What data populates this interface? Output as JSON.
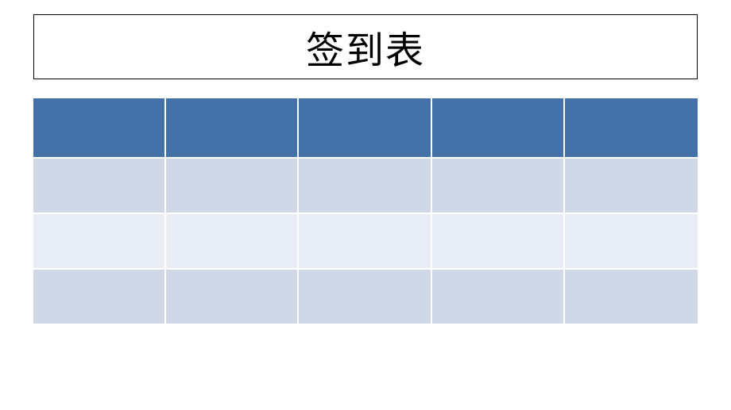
{
  "title": "签到表",
  "table": {
    "type": "table",
    "columns": 5,
    "header_row_count": 1,
    "body_row_count": 3,
    "header_bg_color": "#4472a8",
    "row_odd_bg_color": "#d0d8e8",
    "row_even_bg_color": "#e8ecf4",
    "cell_border_color": "#ffffff",
    "cell_border_width": 2,
    "header_labels": [
      "",
      "",
      "",
      "",
      ""
    ],
    "rows": [
      [
        "",
        "",
        "",
        "",
        ""
      ],
      [
        "",
        "",
        "",
        "",
        ""
      ],
      [
        "",
        "",
        "",
        "",
        ""
      ]
    ]
  },
  "title_box": {
    "border_color": "#000000",
    "background_color": "#ffffff",
    "font_size": 48,
    "text_color": "#000000"
  }
}
